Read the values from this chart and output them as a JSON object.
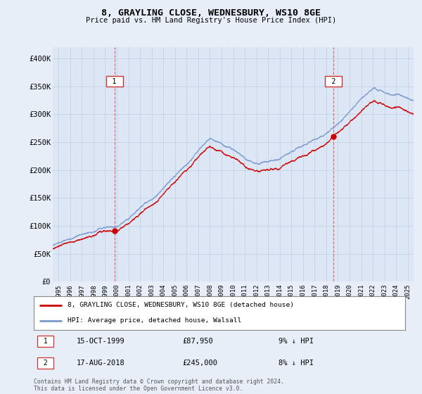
{
  "title": "8, GRAYLING CLOSE, WEDNESBURY, WS10 8GE",
  "subtitle": "Price paid vs. HM Land Registry's House Price Index (HPI)",
  "bg_color": "#e8eef8",
  "plot_bg_color": "#dce6f5",
  "grid_color": "#c8d4e8",
  "red_line_color": "#cc0000",
  "blue_line_color": "#7799cc",
  "sale1_date_num": 1999.79,
  "sale1_price": 87950,
  "sale1_date_str": "15-OCT-1999",
  "sale1_price_str": "£87,950",
  "sale1_hpi_str": "9% ↓ HPI",
  "sale2_date_num": 2018.62,
  "sale2_price": 245000,
  "sale2_date_str": "17-AUG-2018",
  "sale2_price_str": "£245,000",
  "sale2_hpi_str": "8% ↓ HPI",
  "yticks": [
    0,
    50000,
    100000,
    150000,
    200000,
    250000,
    300000,
    350000,
    400000
  ],
  "ylim": [
    0,
    420000
  ],
  "xlim_start": 1994.5,
  "xlim_end": 2025.5,
  "legend_line1": "8, GRAYLING CLOSE, WEDNESBURY, WS10 8GE (detached house)",
  "legend_line2": "HPI: Average price, detached house, Walsall",
  "footer": "Contains HM Land Registry data © Crown copyright and database right 2024.\nThis data is licensed under the Open Government Licence v3.0.",
  "xticks": [
    1995,
    1996,
    1997,
    1998,
    1999,
    2000,
    2001,
    2002,
    2003,
    2004,
    2005,
    2006,
    2007,
    2008,
    2009,
    2010,
    2011,
    2012,
    2013,
    2014,
    2015,
    2016,
    2017,
    2018,
    2019,
    2020,
    2021,
    2022,
    2023,
    2024,
    2025
  ]
}
